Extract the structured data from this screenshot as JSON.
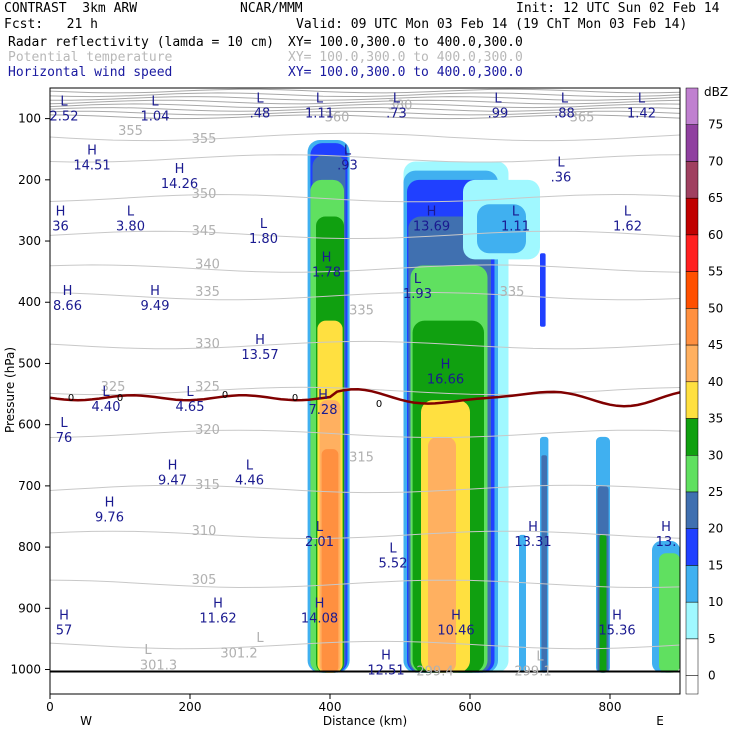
{
  "header": {
    "model": "CONTRAST  3km ARW",
    "org": "NCAR/MMM",
    "init": "Init: 12 UTC Sun 02 Feb 14",
    "fcst": "Fcst:   21 h",
    "valid": "Valid: 09 UTC Mon 03 Feb 14 (19 ChT Mon 03 Feb 14)",
    "fields": [
      {
        "name": "Radar reflectivity (lamda = 10 cm)",
        "xy": "XY= 100.0,300.0 to 400.0,300.0",
        "style": "black"
      },
      {
        "name": "Potential temperature",
        "xy": "XY= 100.0,300.0 to 400.0,300.0",
        "style": "gray"
      },
      {
        "name": "Horizontal wind speed",
        "xy": "XY= 100.0,300.0 to 400.0,300.0",
        "style": "blue"
      }
    ]
  },
  "chart_data": {
    "type": "heatmap",
    "xlabel": "Distance (km)",
    "ylabel": "Pressure (hPa)",
    "xlim": [
      0,
      900
    ],
    "ylim": [
      1040,
      50
    ],
    "xticks": [
      0,
      200,
      400,
      600,
      800
    ],
    "yticks": [
      100,
      200,
      300,
      400,
      500,
      600,
      700,
      800,
      900,
      1000
    ],
    "x_ends": {
      "left": "W",
      "right": "E"
    },
    "colorbar": {
      "unit": "dBZ",
      "levels": [
        75,
        70,
        65,
        60,
        55,
        50,
        45,
        40,
        35,
        30,
        25,
        20,
        15,
        10,
        5,
        0
      ],
      "colors": [
        "#c080d0",
        "#9040a0",
        "#a04060",
        "#c00000",
        "#ff2020",
        "#ff5000",
        "#ff9040",
        "#ffb060",
        "#ffe040",
        "#10a010",
        "#60e060",
        "#4070b0",
        "#2040ff",
        "#40b0f0",
        "#a0f8ff",
        "#ffffff"
      ]
    },
    "wind_labels": [
      {
        "t": "L",
        "x": 20,
        "p": 85,
        "v": "2.52"
      },
      {
        "t": "L",
        "x": 150,
        "p": 85,
        "v": "1.04"
      },
      {
        "t": "L",
        "x": 300,
        "p": 80,
        "v": ".48"
      },
      {
        "t": "L",
        "x": 385,
        "p": 80,
        "v": "1.11"
      },
      {
        "t": "L",
        "x": 495,
        "p": 80,
        "v": ".73"
      },
      {
        "t": "L",
        "x": 640,
        "p": 80,
        "v": ".99"
      },
      {
        "t": "L",
        "x": 735,
        "p": 80,
        "v": ".88"
      },
      {
        "t": "L",
        "x": 845,
        "p": 80,
        "v": "1.42"
      },
      {
        "t": "L",
        "x": 425,
        "p": 165,
        "v": ".93"
      },
      {
        "t": "H",
        "x": 60,
        "p": 165,
        "v": "14.51"
      },
      {
        "t": "H",
        "x": 185,
        "p": 195,
        "v": "14.26"
      },
      {
        "t": "L",
        "x": 730,
        "p": 185,
        "v": ".36"
      },
      {
        "t": "H",
        "x": 15,
        "p": 265,
        "v": "36"
      },
      {
        "t": "L",
        "x": 115,
        "p": 265,
        "v": "3.80"
      },
      {
        "t": "L",
        "x": 305,
        "p": 285,
        "v": "1.80"
      },
      {
        "t": "H",
        "x": 545,
        "p": 265,
        "v": "13.69"
      },
      {
        "t": "L",
        "x": 665,
        "p": 265,
        "v": "1.11"
      },
      {
        "t": "L",
        "x": 825,
        "p": 265,
        "v": "1.62"
      },
      {
        "t": "H",
        "x": 395,
        "p": 340,
        "v": "1.78"
      },
      {
        "t": "L",
        "x": 525,
        "p": 375,
        "v": "1.93"
      },
      {
        "t": "H",
        "x": 25,
        "p": 395,
        "v": "8.66"
      },
      {
        "t": "H",
        "x": 150,
        "p": 395,
        "v": "9.49"
      },
      {
        "t": "H",
        "x": 300,
        "p": 475,
        "v": "13.57"
      },
      {
        "t": "H",
        "x": 565,
        "p": 515,
        "v": "16.66"
      },
      {
        "t": "L",
        "x": 80,
        "p": 560,
        "v": "4.40"
      },
      {
        "t": "L",
        "x": 200,
        "p": 560,
        "v": "4.65"
      },
      {
        "t": "H",
        "x": 390,
        "p": 565,
        "v": "7.28"
      },
      {
        "t": "L",
        "x": 20,
        "p": 610,
        "v": "76"
      },
      {
        "t": "H",
        "x": 175,
        "p": 680,
        "v": "9.47"
      },
      {
        "t": "L",
        "x": 285,
        "p": 680,
        "v": "4.46"
      },
      {
        "t": "H",
        "x": 85,
        "p": 740,
        "v": "9.76"
      },
      {
        "t": "L",
        "x": 385,
        "p": 780,
        "v": "2.01"
      },
      {
        "t": "L",
        "x": 490,
        "p": 815,
        "v": "5.52"
      },
      {
        "t": "H",
        "x": 690,
        "p": 780,
        "v": "13.31"
      },
      {
        "t": "H",
        "x": 880,
        "p": 780,
        "v": "13."
      },
      {
        "t": "H",
        "x": 240,
        "p": 905,
        "v": "11.62"
      },
      {
        "t": "H",
        "x": 385,
        "p": 905,
        "v": "14.08"
      },
      {
        "t": "H",
        "x": 580,
        "p": 925,
        "v": "10.46"
      },
      {
        "t": "H",
        "x": 810,
        "p": 925,
        "v": "15.36"
      },
      {
        "t": "H",
        "x": 20,
        "p": 925,
        "v": "57"
      },
      {
        "t": "H",
        "x": 480,
        "p": 990,
        "v": "12.51"
      }
    ],
    "theta_labels": [
      {
        "x": 115,
        "p": 127,
        "v": "355"
      },
      {
        "x": 220,
        "p": 140,
        "v": "355"
      },
      {
        "x": 410,
        "p": 105,
        "v": "360"
      },
      {
        "x": 500,
        "p": 85,
        "v": "380"
      },
      {
        "x": 760,
        "p": 105,
        "v": "365"
      },
      {
        "x": 220,
        "p": 230,
        "v": "350"
      },
      {
        "x": 220,
        "p": 290,
        "v": "345"
      },
      {
        "x": 225,
        "p": 345,
        "v": "340"
      },
      {
        "x": 225,
        "p": 390,
        "v": "335"
      },
      {
        "x": 445,
        "p": 420,
        "v": "335"
      },
      {
        "x": 660,
        "p": 390,
        "v": "335"
      },
      {
        "x": 225,
        "p": 475,
        "v": "330"
      },
      {
        "x": 90,
        "p": 545,
        "v": "325"
      },
      {
        "x": 225,
        "p": 545,
        "v": "325"
      },
      {
        "x": 225,
        "p": 615,
        "v": "320"
      },
      {
        "x": 445,
        "p": 660,
        "v": "315"
      },
      {
        "x": 225,
        "p": 705,
        "v": "315"
      },
      {
        "x": 220,
        "p": 780,
        "v": "310"
      },
      {
        "x": 220,
        "p": 860,
        "v": "305"
      },
      {
        "x": 155,
        "p": 1000,
        "v": "301.3"
      },
      {
        "x": 270,
        "p": 980,
        "v": "301.2"
      },
      {
        "x": 550,
        "p": 1010,
        "v": "299.4"
      },
      {
        "x": 690,
        "p": 1010,
        "v": "299.1"
      },
      {
        "x": 140,
        "p": 975,
        "v": "L"
      },
      {
        "x": 300,
        "p": 955,
        "v": "L"
      },
      {
        "x": 700,
        "p": 985,
        "v": "L"
      }
    ],
    "zero_contour": [
      {
        "x": 30,
        "p": 555,
        "v": "0"
      },
      {
        "x": 100,
        "p": 555,
        "v": "0"
      },
      {
        "x": 250,
        "p": 550,
        "v": "0"
      },
      {
        "x": 350,
        "p": 555,
        "v": "0"
      },
      {
        "x": 470,
        "p": 565,
        "v": "0"
      }
    ]
  }
}
